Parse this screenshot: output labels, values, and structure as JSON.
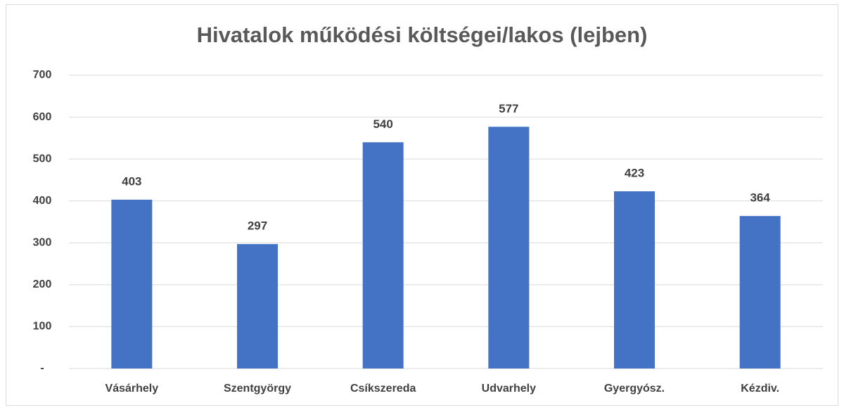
{
  "chart_data": {
    "type": "bar",
    "title": "Hivatalok működési költségei/lakos (lejben)",
    "categories": [
      "Vásárhely",
      "Szentgyörgy",
      "Csíkszereda",
      "Udvarhely",
      "Gyergyósz.",
      "Kézdiv."
    ],
    "values": [
      403,
      297,
      540,
      577,
      423,
      364
    ],
    "color": "#4472c4",
    "ylim": [
      0,
      700
    ],
    "yticks": [
      {
        "value": 0,
        "label": "-"
      },
      100,
      200,
      300,
      400,
      500,
      600,
      700
    ],
    "grid": true
  }
}
